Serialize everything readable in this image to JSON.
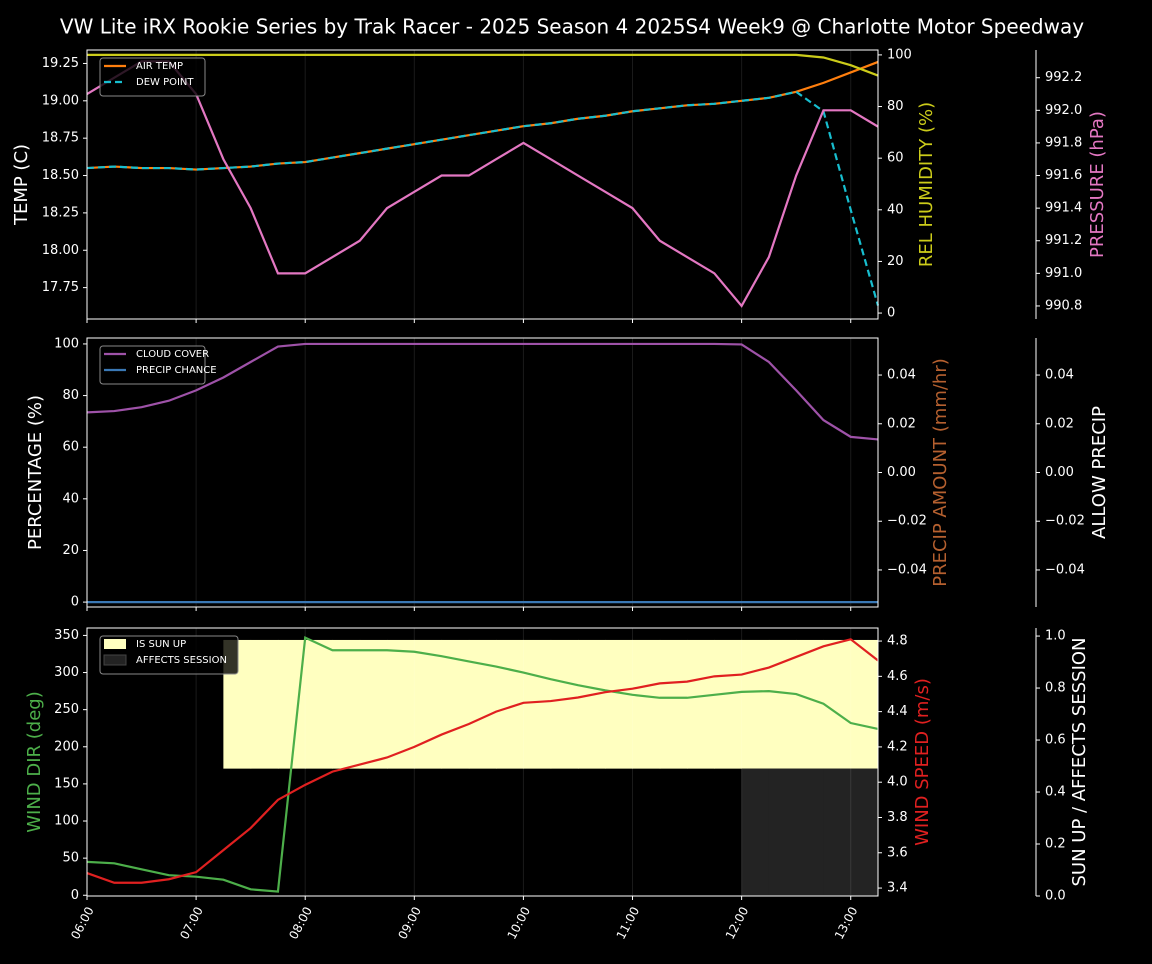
{
  "chart_data": [
    {
      "type": "line",
      "title": "VW Lite iRX Rookie Series by Trak Racer - 2025 Season 4 2025S4 Week9 @ Charlotte Motor Speedway",
      "x": [
        "06:00",
        "06:15",
        "06:30",
        "06:45",
        "07:00",
        "07:15",
        "07:30",
        "07:45",
        "08:00",
        "08:15",
        "08:30",
        "08:45",
        "09:00",
        "09:15",
        "09:30",
        "09:45",
        "10:00",
        "10:15",
        "10:30",
        "10:45",
        "11:00",
        "11:15",
        "11:30",
        "11:45",
        "12:00",
        "12:15",
        "12:30",
        "12:45",
        "13:00",
        "13:15"
      ],
      "xlim": [
        "06:00",
        "13:15"
      ],
      "ylabel": "TEMP (C)",
      "ylabel_color": "#ffffff",
      "ylim": [
        17.54,
        19.34
      ],
      "yticks": [
        17.75,
        {
          "value": 18,
          "label": "18.00"
        },
        18.25,
        {
          "value": 18.5,
          "label": "18.50"
        },
        18.75,
        {
          "value": 19,
          "label": "19.00"
        },
        19.25
      ],
      "y2label": "REL HUMIDITY (%)",
      "y2label_color": "#cccc1a",
      "y2lim": [
        -2.3,
        101.9
      ],
      "y2ticks": [
        0,
        20,
        40,
        60,
        80,
        100
      ],
      "y3label": "PRESSURE (hPa)",
      "y3label_color": "#e377c2",
      "y3lim": [
        990.72,
        992.37
      ],
      "y3ticks": [
        990.8,
        {
          "value": 991,
          "label": "991.0"
        },
        991.2,
        991.4,
        991.6,
        991.8,
        {
          "value": 992,
          "label": "992.0"
        },
        992.2
      ],
      "series": [
        {
          "name": "AIR TEMP",
          "color": "#ff7f0e",
          "axis": "y",
          "legend": true,
          "values": [
            18.55,
            18.56,
            18.55,
            18.55,
            18.54,
            18.55,
            18.56,
            18.58,
            18.59,
            18.62,
            18.65,
            18.68,
            18.71,
            18.74,
            18.77,
            18.8,
            18.83,
            18.85,
            18.88,
            18.9,
            18.93,
            18.95,
            18.97,
            18.98,
            19.0,
            19.02,
            19.06,
            19.12,
            19.19,
            19.26
          ]
        },
        {
          "name": "DEW POINT",
          "color": "#17becf",
          "axis": "y",
          "legend": true,
          "dashed": true,
          "values": [
            18.55,
            18.56,
            18.55,
            18.55,
            18.54,
            18.55,
            18.56,
            18.58,
            18.59,
            18.62,
            18.65,
            18.68,
            18.71,
            18.74,
            18.77,
            18.8,
            18.83,
            18.85,
            18.88,
            18.9,
            18.93,
            18.95,
            18.97,
            18.98,
            19.0,
            19.02,
            19.06,
            18.93,
            18.27,
            17.63
          ]
        },
        {
          "name": "REL HUMIDITY",
          "color": "#cccc1a",
          "axis": "y2",
          "legend": false,
          "values": [
            100,
            100,
            100,
            100,
            100,
            100,
            100,
            100,
            100,
            100,
            100,
            100,
            100,
            100,
            100,
            100,
            100,
            100,
            100,
            100,
            100,
            100,
            100,
            100,
            100,
            100,
            100,
            99,
            96,
            92
          ]
        },
        {
          "name": "PRESSURE",
          "color": "#e377c2",
          "axis": "y3",
          "legend": false,
          "values": [
            992.1,
            992.2,
            992.3,
            992.3,
            992.1,
            991.7,
            991.4,
            991.0,
            991.0,
            991.1,
            991.2,
            991.4,
            991.5,
            991.6,
            991.6,
            991.7,
            991.8,
            991.7,
            991.6,
            991.5,
            991.4,
            991.2,
            991.1,
            991.0,
            990.8,
            991.1,
            991.6,
            992.0,
            992.0,
            991.9
          ]
        }
      ]
    },
    {
      "type": "line",
      "x": [
        "06:00",
        "06:15",
        "06:30",
        "06:45",
        "07:00",
        "07:15",
        "07:30",
        "07:45",
        "08:00",
        "08:15",
        "08:30",
        "08:45",
        "09:00",
        "09:15",
        "09:30",
        "09:45",
        "10:00",
        "10:15",
        "10:30",
        "10:45",
        "11:00",
        "11:15",
        "11:30",
        "11:45",
        "12:00",
        "12:15",
        "12:30",
        "12:45",
        "13:00",
        "13:15"
      ],
      "xlim": [
        "06:00",
        "13:15"
      ],
      "ylabel": "PERCENTAGE (%)",
      "ylabel_color": "#ffffff",
      "ylim": [
        -1.9,
        102.3
      ],
      "yticks": [
        0,
        20,
        40,
        60,
        80,
        100
      ],
      "y2label": "PRECIP AMOUNT (mm/hr)",
      "y2label_color": "#b5602f",
      "y2lim": [
        -0.0552,
        0.0552
      ],
      "y2ticks": [
        {
          "value": -0.04,
          "label": "−0.04"
        },
        {
          "value": -0.02,
          "label": "−0.02"
        },
        {
          "value": 0,
          "label": "0.00"
        },
        0.02,
        0.04
      ],
      "y3label": "ALLOW PRECIP",
      "y3label_color": "#ffffff",
      "y3lim": [
        -0.0552,
        0.0552
      ],
      "y3ticks": [
        {
          "value": -0.04,
          "label": "−0.04"
        },
        {
          "value": -0.02,
          "label": "−0.02"
        },
        {
          "value": 0,
          "label": "0.00"
        },
        0.02,
        0.04
      ],
      "series": [
        {
          "name": "CLOUD COVER",
          "color": "#9e52a8",
          "axis": "y",
          "legend": true,
          "values": [
            73.5,
            74,
            75.5,
            78,
            82,
            87,
            93,
            99,
            100,
            100,
            100,
            100,
            100,
            100,
            100,
            100,
            100,
            100,
            100,
            100,
            100,
            100,
            100,
            100,
            99.8,
            93,
            82,
            70.5,
            64,
            63
          ]
        },
        {
          "name": "PRECIP CHANCE",
          "color": "#3a78b5",
          "axis": "y",
          "legend": true,
          "values": [
            0,
            0,
            0,
            0,
            0,
            0,
            0,
            0,
            0,
            0,
            0,
            0,
            0,
            0,
            0,
            0,
            0,
            0,
            0,
            0,
            0,
            0,
            0,
            0,
            0,
            0,
            0,
            0,
            0,
            0
          ]
        }
      ]
    },
    {
      "type": "line",
      "x": [
        "06:00",
        "06:15",
        "06:30",
        "06:45",
        "07:00",
        "07:15",
        "07:30",
        "07:45",
        "08:00",
        "08:15",
        "08:30",
        "08:45",
        "09:00",
        "09:15",
        "09:30",
        "09:45",
        "10:00",
        "10:15",
        "10:30",
        "10:45",
        "11:00",
        "11:15",
        "11:30",
        "11:45",
        "12:00",
        "12:15",
        "12:30",
        "12:45",
        "13:00",
        "13:15"
      ],
      "xlim": [
        "06:00",
        "13:15"
      ],
      "xticks": [
        "06:00",
        "07:00",
        "08:00",
        "09:00",
        "10:00",
        "11:00",
        "12:00",
        "13:00"
      ],
      "ylabel": "WIND DIR (deg)",
      "ylabel_color": "#4daf4a",
      "ylim": [
        -1,
        360
      ],
      "yticks": [
        0,
        50,
        100,
        150,
        200,
        250,
        300,
        350
      ],
      "y2label": "WIND SPEED (m/s)",
      "y2label_color": "#e02020",
      "y2lim": [
        3.355,
        4.874
      ],
      "y2ticks": [
        3.4,
        3.6,
        3.8,
        {
          "value": 4,
          "label": "4.0"
        },
        4.2,
        4.4,
        4.6,
        4.8
      ],
      "y3label": "SUN UP / AFFECTS SESSION",
      "y3label_color": "#ffffff",
      "y3lim": [
        0,
        1.031
      ],
      "y3ticks": [
        {
          "value": 0,
          "label": "0.0"
        },
        0.2,
        0.4,
        0.6,
        0.8,
        {
          "value": 1,
          "label": "1.0"
        }
      ],
      "series": [
        {
          "name": "IS SUN UP",
          "color": "#ffffc0",
          "axis": "y3",
          "legend": true,
          "fill": true,
          "span": [
            0.49,
            0.985
          ],
          "values": [
            0,
            0,
            0,
            0,
            0,
            1,
            1,
            1,
            1,
            1,
            1,
            1,
            1,
            1,
            1,
            1,
            1,
            1,
            1,
            1,
            1,
            1,
            1,
            1,
            1,
            1,
            1,
            1,
            1,
            1
          ]
        },
        {
          "name": "AFFECTS SESSION",
          "color": "#232323",
          "axis": "y3",
          "legend": true,
          "fill": true,
          "span": [
            0,
            0.49
          ],
          "values": [
            0,
            0,
            0,
            0,
            0,
            0,
            0,
            0,
            0,
            0,
            0,
            0,
            0,
            0,
            0,
            0,
            0,
            0,
            0,
            0,
            0,
            0,
            0,
            0,
            1,
            1,
            1,
            1,
            1,
            1
          ]
        },
        {
          "name": "WIND DIR",
          "color": "#4daf4a",
          "axis": "y",
          "legend": false,
          "values": [
            45,
            43,
            35,
            27,
            25,
            21,
            8,
            5,
            347,
            330,
            330,
            330,
            328,
            322,
            315,
            308,
            300,
            291,
            283,
            276,
            270,
            266,
            266,
            270,
            274,
            275,
            271,
            258,
            232,
            224
          ]
        },
        {
          "name": "WIND SPEED",
          "color": "#e02020",
          "axis": "y2",
          "legend": false,
          "values": [
            3.485,
            3.43,
            3.43,
            3.45,
            3.49,
            3.615,
            3.74,
            3.9,
            3.985,
            4.06,
            4.1,
            4.14,
            4.2,
            4.27,
            4.33,
            4.4,
            4.45,
            4.46,
            4.48,
            4.51,
            4.53,
            4.56,
            4.57,
            4.6,
            4.61,
            4.65,
            4.71,
            4.77,
            4.81,
            4.69
          ]
        }
      ]
    }
  ]
}
